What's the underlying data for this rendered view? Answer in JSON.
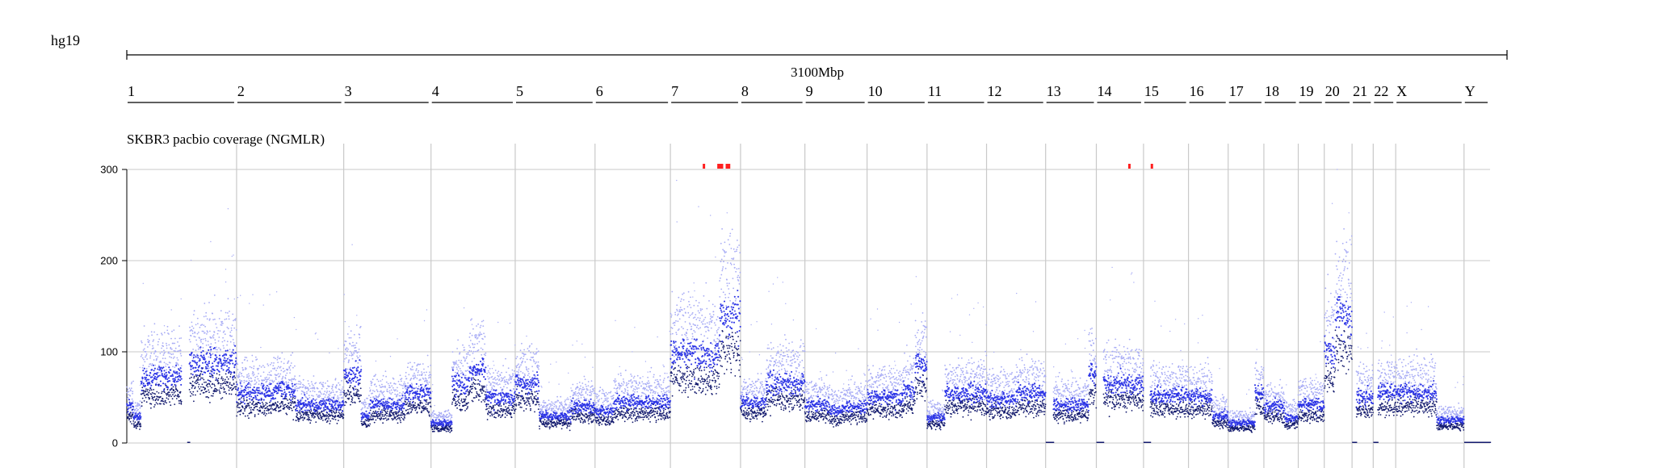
{
  "genome_label": "hg19",
  "chart_data": {
    "type": "scatter",
    "title": "SKBR3 pacbio coverage (NGMLR)",
    "total_length_label": "3100Mbp",
    "y_ticks": [
      0,
      100,
      200,
      300
    ],
    "ylim": [
      0,
      300
    ],
    "grid": true,
    "colors": {
      "light_points": "#a8acf5",
      "mid_points": "#2d35e6",
      "dark_points": "#141b6e",
      "overflow_marks": "#ff2020",
      "grid": "#c9c9c9",
      "axis": "#000000"
    },
    "chromosomes": [
      {
        "name": "1",
        "length_mb": 249,
        "segments": [
          [
            0,
            0.06,
            40
          ],
          [
            0.06,
            0.13,
            28
          ],
          [
            0.13,
            0.5,
            72
          ],
          [
            0.55,
            0.57,
            0
          ],
          [
            0.57,
            1.0,
            88
          ]
        ]
      },
      {
        "name": "2",
        "length_mb": 243,
        "segments": [
          [
            0,
            0.35,
            55
          ],
          [
            0.35,
            0.55,
            57
          ],
          [
            0.55,
            1.0,
            42
          ]
        ]
      },
      {
        "name": "3",
        "length_mb": 198,
        "segments": [
          [
            0,
            0.2,
            75
          ],
          [
            0.2,
            0.3,
            30
          ],
          [
            0.3,
            0.7,
            42
          ],
          [
            0.7,
            1.0,
            55
          ]
        ]
      },
      {
        "name": "4",
        "length_mb": 191,
        "segments": [
          [
            0,
            0.25,
            22
          ],
          [
            0.25,
            0.45,
            65
          ],
          [
            0.45,
            0.65,
            80
          ],
          [
            0.65,
            1.0,
            50
          ]
        ]
      },
      {
        "name": "5",
        "length_mb": 181,
        "segments": [
          [
            0,
            0.3,
            65
          ],
          [
            0.3,
            0.7,
            30
          ],
          [
            0.7,
            1.0,
            40
          ]
        ]
      },
      {
        "name": "6",
        "length_mb": 171,
        "segments": [
          [
            0,
            0.25,
            35
          ],
          [
            0.25,
            1.0,
            45
          ]
        ]
      },
      {
        "name": "7",
        "length_mb": 159,
        "segments": [
          [
            0,
            0.45,
            98
          ],
          [
            0.45,
            0.7,
            95
          ],
          [
            0.7,
            1.0,
            140
          ]
        ]
      },
      {
        "name": "8",
        "length_mb": 146,
        "segments": [
          [
            0,
            0.4,
            45
          ],
          [
            0.4,
            1.0,
            65
          ]
        ]
      },
      {
        "name": "9",
        "length_mb": 141,
        "segments": [
          [
            0,
            0.4,
            42
          ],
          [
            0.4,
            0.6,
            35
          ],
          [
            0.6,
            1.0,
            40
          ]
        ]
      },
      {
        "name": "10",
        "length_mb": 136,
        "segments": [
          [
            0,
            0.6,
            50
          ],
          [
            0.6,
            0.8,
            58
          ],
          [
            0.8,
            1.0,
            85
          ]
        ]
      },
      {
        "name": "11",
        "length_mb": 135,
        "segments": [
          [
            0,
            0.3,
            28
          ],
          [
            0.3,
            1.0,
            55
          ]
        ]
      },
      {
        "name": "12",
        "length_mb": 134,
        "segments": [
          [
            0,
            0.5,
            48
          ],
          [
            0.5,
            1.0,
            55
          ]
        ]
      },
      {
        "name": "13",
        "length_mb": 115,
        "segments": [
          [
            0,
            0.15,
            0
          ],
          [
            0.15,
            0.85,
            42
          ],
          [
            0.85,
            1.0,
            75
          ]
        ]
      },
      {
        "name": "14",
        "length_mb": 107,
        "segments": [
          [
            0,
            0.15,
            0
          ],
          [
            0.15,
            1.0,
            65
          ]
        ]
      },
      {
        "name": "15",
        "length_mb": 102,
        "segments": [
          [
            0,
            0.15,
            0
          ],
          [
            0.15,
            1.0,
            52
          ]
        ]
      },
      {
        "name": "16",
        "length_mb": 90,
        "segments": [
          [
            0,
            0.6,
            50
          ],
          [
            0.6,
            1.0,
            30
          ]
        ]
      },
      {
        "name": "17",
        "length_mb": 81,
        "segments": [
          [
            0,
            0.75,
            22
          ],
          [
            0.75,
            1.0,
            55
          ]
        ]
      },
      {
        "name": "18",
        "length_mb": 78,
        "segments": [
          [
            0,
            0.6,
            40
          ],
          [
            0.6,
            1.0,
            28
          ]
        ]
      },
      {
        "name": "19",
        "length_mb": 59,
        "segments": [
          [
            0,
            1.0,
            42
          ]
        ]
      },
      {
        "name": "20",
        "length_mb": 63,
        "segments": [
          [
            0,
            0.4,
            100
          ],
          [
            0.4,
            1.0,
            140
          ]
        ]
      },
      {
        "name": "21",
        "length_mb": 48,
        "segments": [
          [
            0,
            0.2,
            0
          ],
          [
            0.2,
            1.0,
            50
          ]
        ]
      },
      {
        "name": "22",
        "length_mb": 51,
        "segments": [
          [
            0,
            0.2,
            0
          ],
          [
            0.2,
            1.0,
            55
          ]
        ]
      },
      {
        "name": "X",
        "length_mb": 155,
        "segments": [
          [
            0,
            0.6,
            55
          ],
          [
            0.6,
            1.0,
            25
          ]
        ]
      },
      {
        "name": "Y",
        "length_mb": 59,
        "segments": [
          [
            0,
            1.0,
            1
          ]
        ]
      }
    ],
    "overflow_marks_mb": [
      1309,
      1342,
      1344,
      1347,
      1350,
      1361,
      1363,
      1366,
      2274,
      2325
    ]
  }
}
